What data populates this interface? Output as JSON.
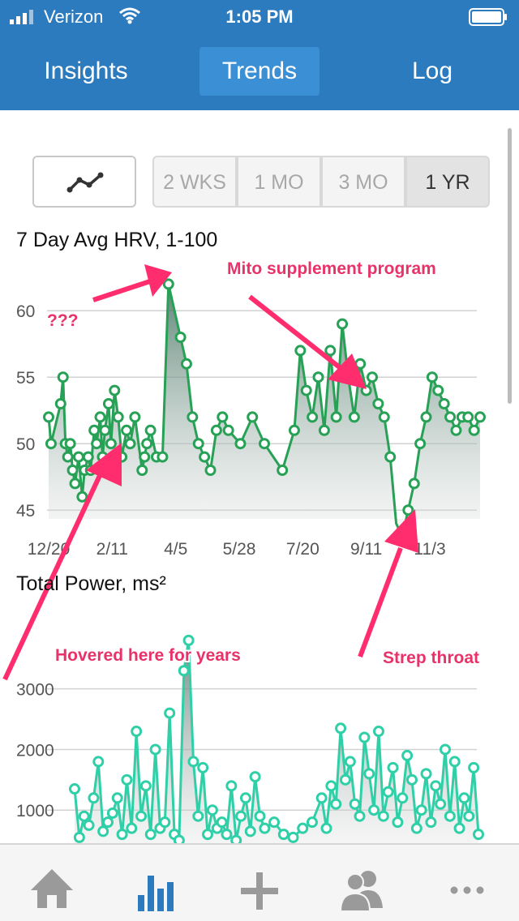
{
  "status": {
    "carrier": "Verizon",
    "time": "1:05 PM"
  },
  "tabs": [
    {
      "label": "Insights"
    },
    {
      "label": "Trends"
    },
    {
      "label": "Log"
    }
  ],
  "ranges": [
    {
      "label": "2 WKS"
    },
    {
      "label": "1 MO"
    },
    {
      "label": "3 MO"
    },
    {
      "label": "1 YR"
    }
  ],
  "selected_range": "1 YR",
  "colors": {
    "header": "#2d7bbf",
    "hrv": "#27a155",
    "power": "#2fcfa8",
    "annotation": "#e8336a",
    "nav_active": "#2d7bbf"
  },
  "bottom_nav": [
    {
      "icon": "home-icon"
    },
    {
      "icon": "bar-chart-icon"
    },
    {
      "icon": "plus-icon"
    },
    {
      "icon": "people-icon"
    },
    {
      "icon": "more-icon"
    }
  ],
  "annotations": {
    "question": "???",
    "mito": "Mito supplement program",
    "hover": "Hovered here for years",
    "strep": "Strep throat"
  },
  "chart_data": [
    {
      "type": "area",
      "title": "7 Day Avg HRV, 1-100",
      "x_ticks": [
        "12/20",
        "2/11",
        "4/5",
        "5/28",
        "7/20",
        "9/11",
        "11/3"
      ],
      "y_ticks": [
        45,
        50,
        55,
        60
      ],
      "ylim": [
        43,
        63
      ],
      "grid": true,
      "series": [
        {
          "x": [
            0,
            2,
            10,
            12,
            14,
            16,
            18,
            20,
            22,
            25,
            28,
            30,
            33,
            35,
            38,
            40,
            43,
            45,
            47,
            50,
            52,
            55,
            58,
            61,
            65,
            68,
            72,
            78,
            80,
            82,
            85,
            90,
            95,
            100,
            110,
            115,
            120,
            125,
            130,
            135,
            140,
            145,
            150,
            160,
            170,
            180,
            195,
            205,
            210,
            215,
            220,
            225,
            230,
            235,
            240,
            245,
            250,
            255,
            260,
            265,
            270,
            275,
            280,
            285,
            290,
            295,
            300,
            305,
            310,
            315,
            320,
            325,
            330,
            335,
            340,
            345,
            350,
            355,
            360
          ],
          "values": [
            52,
            50,
            53,
            55,
            50,
            49,
            50,
            48,
            47,
            49,
            46,
            48,
            49,
            48,
            51,
            50,
            52,
            49,
            51,
            53,
            50,
            54,
            52,
            49,
            51,
            50,
            52,
            48,
            49,
            50,
            51,
            49,
            49,
            62,
            58,
            56,
            52,
            50,
            49,
            48,
            51,
            52,
            51,
            50,
            52,
            50,
            48,
            51,
            57,
            54,
            52,
            55,
            51,
            57,
            52,
            59,
            55,
            52,
            56,
            54,
            55,
            53,
            52,
            49,
            44,
            43,
            45,
            47,
            50,
            52,
            55,
            54,
            53,
            52,
            51,
            52,
            52,
            51,
            52
          ]
        }
      ]
    },
    {
      "type": "area",
      "title": "Total Power, ms²",
      "y_ticks": [
        1000,
        2000,
        3000
      ],
      "ylim": [
        0,
        4400
      ],
      "grid": true,
      "series": [
        {
          "x": [
            0,
            4,
            8,
            12,
            16,
            20,
            24,
            28,
            32,
            36,
            40,
            44,
            48,
            52,
            56,
            60,
            64,
            68,
            72,
            76,
            80,
            84,
            88,
            92,
            96,
            100,
            104,
            108,
            112,
            116,
            120,
            124,
            128,
            132,
            136,
            140,
            144,
            148,
            152,
            156,
            160,
            168,
            176,
            184,
            192,
            200,
            208,
            212,
            216,
            220,
            224,
            228,
            232,
            236,
            240,
            244,
            248,
            252,
            256,
            260,
            264,
            268,
            272,
            276,
            280,
            284,
            288,
            292,
            296,
            300,
            304,
            308,
            312,
            316,
            320,
            324,
            328,
            332,
            336,
            340
          ],
          "values": [
            1350,
            550,
            900,
            750,
            1200,
            1800,
            650,
            800,
            950,
            1200,
            600,
            1500,
            700,
            2300,
            900,
            1400,
            600,
            2000,
            700,
            800,
            2600,
            600,
            500,
            3300,
            3800,
            1800,
            900,
            1700,
            600,
            1000,
            700,
            800,
            600,
            1400,
            500,
            900,
            1200,
            650,
            1550,
            900,
            700,
            800,
            600,
            550,
            700,
            800,
            1200,
            700,
            1400,
            1100,
            2350,
            1500,
            1800,
            1100,
            900,
            2200,
            1600,
            1000,
            2300,
            900,
            1300,
            1700,
            800,
            1200,
            1900,
            1500,
            700,
            1000,
            1600,
            800,
            1400,
            1100,
            2000,
            900,
            1800,
            700,
            1200,
            900,
            1700,
            600
          ]
        }
      ]
    }
  ]
}
